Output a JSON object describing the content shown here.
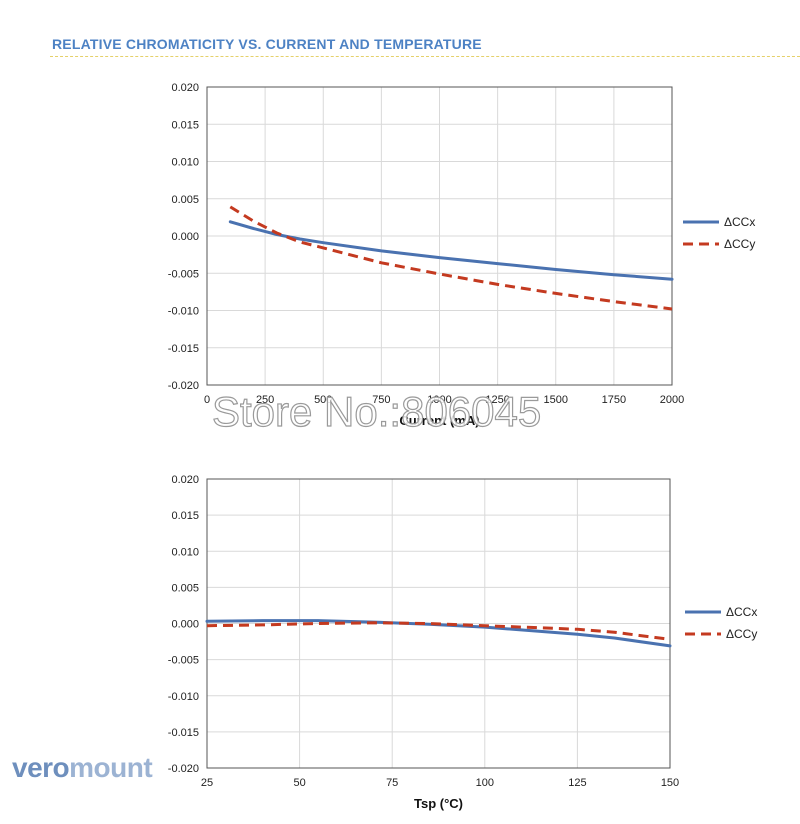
{
  "header": {
    "title": "RELATIVE CHROMATICITY VS. CURRENT AND TEMPERATURE"
  },
  "colors": {
    "title": "#4d82c4",
    "ccx": "#4a72b0",
    "ccy": "#c43a20",
    "grid": "#d9d9d9",
    "axis": "#555555"
  },
  "watermark": "Store No.:806045",
  "logo": {
    "part1": "vero",
    "part2": "mount"
  },
  "chart_data": [
    {
      "type": "line",
      "xlabel": "Current (mA)",
      "ylabel": "",
      "xlim": [
        0,
        2000
      ],
      "ylim": [
        -0.02,
        0.02
      ],
      "xticks": [
        "0",
        "250",
        "500",
        "750",
        "1000",
        "1250",
        "1500",
        "1750",
        "2000"
      ],
      "yticks": [
        "0.020",
        "0.015",
        "0.010",
        "0.005",
        "0.000",
        "-0.005",
        "-0.010",
        "-0.015",
        "-0.020"
      ],
      "grid": true,
      "legend": "right",
      "series": [
        {
          "name": "ΔCCx",
          "style": "solid",
          "x": [
            100,
            200,
            300,
            400,
            500,
            750,
            1000,
            1250,
            1500,
            1750,
            2000
          ],
          "y": [
            0.0019,
            0.001,
            0.0002,
            -0.0004,
            -0.0009,
            -0.002,
            -0.0029,
            -0.0037,
            -0.0045,
            -0.0052,
            -0.0058
          ]
        },
        {
          "name": "ΔCCy",
          "style": "dashed",
          "x": [
            100,
            200,
            300,
            400,
            500,
            750,
            1000,
            1250,
            1500,
            1750,
            2000
          ],
          "y": [
            0.0039,
            0.002,
            0.0004,
            -0.0008,
            -0.0016,
            -0.0036,
            -0.0051,
            -0.0065,
            -0.0077,
            -0.0088,
            -0.0098
          ]
        }
      ]
    },
    {
      "type": "line",
      "xlabel": "Tsp (°C)",
      "ylabel": "",
      "xlim": [
        25,
        150
      ],
      "ylim": [
        -0.02,
        0.02
      ],
      "xticks": [
        "25",
        "50",
        "75",
        "100",
        "125",
        "150"
      ],
      "yticks": [
        "0.020",
        "0.015",
        "0.010",
        "0.005",
        "0.000",
        "-0.005",
        "-0.010",
        "-0.015",
        "-0.020"
      ],
      "grid": true,
      "legend": "right",
      "series": [
        {
          "name": "ΔCCx",
          "style": "solid",
          "x": [
            25,
            40,
            55,
            70,
            85,
            100,
            115,
            125,
            135,
            150
          ],
          "y": [
            0.0003,
            0.0004,
            0.0004,
            0.0002,
            -0.0001,
            -0.0005,
            -0.0011,
            -0.0015,
            -0.002,
            -0.0031
          ]
        },
        {
          "name": "ΔCCy",
          "style": "dashed",
          "x": [
            25,
            40,
            55,
            70,
            85,
            100,
            115,
            125,
            135,
            150
          ],
          "y": [
            -0.0003,
            -0.0002,
            0.0,
            0.0001,
            0.0,
            -0.0003,
            -0.0006,
            -0.0008,
            -0.0012,
            -0.0022
          ]
        }
      ]
    }
  ]
}
